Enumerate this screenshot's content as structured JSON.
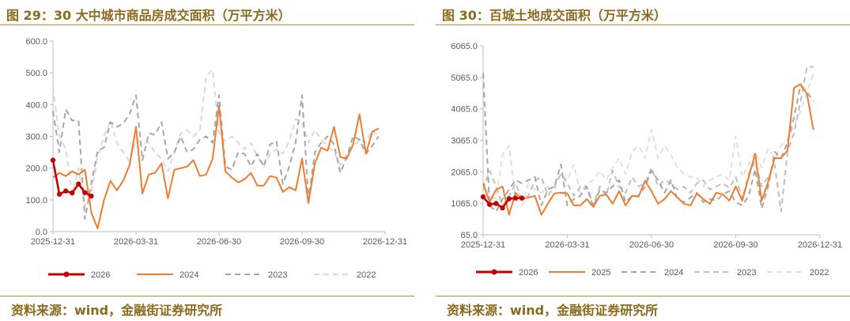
{
  "chart_data": [
    {
      "type": "line",
      "title": "图 29：30 大中城市商品房成交面积（万平方米）",
      "source": "资料来源：wind，金融街证券研究所",
      "x_tick_labels": [
        "2025-12-31",
        "2026-03-31",
        "2026-06-30",
        "2026-09-30",
        "2026-12-31"
      ],
      "y_tick_labels": [
        "0.0",
        "100.0",
        "200.0",
        "300.0",
        "400.0",
        "500.0",
        "600.0"
      ],
      "ylim": [
        0,
        600
      ],
      "x_range": [
        0,
        52
      ],
      "legend_position": "bottom",
      "series": [
        {
          "name": "2026",
          "color": "#c00000",
          "dashed": false,
          "markers": true,
          "x": [
            0,
            1,
            2,
            3,
            4,
            5,
            6,
            7
          ],
          "values": [
            225,
            118,
            128,
            122,
            150,
            123,
            112,
            null
          ]
        },
        {
          "name": "2024",
          "color": "#ed7d31",
          "dashed": false,
          "markers": false,
          "x": [
            0,
            1,
            2,
            3,
            4,
            5,
            6,
            7,
            8,
            9,
            10,
            11,
            12,
            13,
            14,
            15,
            16,
            17,
            18,
            19,
            20,
            21,
            22,
            23,
            24,
            25,
            26,
            27,
            28,
            29,
            30,
            31,
            32,
            33,
            34,
            35,
            36,
            37,
            38,
            39,
            40,
            41,
            42,
            43,
            44,
            45,
            46,
            47,
            48,
            49,
            50,
            51
          ],
          "values": [
            170,
            185,
            175,
            190,
            180,
            195,
            60,
            10,
            100,
            160,
            130,
            160,
            210,
            330,
            120,
            180,
            185,
            215,
            105,
            195,
            200,
            205,
            225,
            175,
            180,
            230,
            395,
            190,
            170,
            155,
            165,
            185,
            145,
            145,
            175,
            170,
            125,
            140,
            130,
            230,
            90,
            215,
            265,
            255,
            330,
            235,
            230,
            275,
            370,
            245,
            315,
            325
          ]
        },
        {
          "name": "2023",
          "color": "#a6a6a6",
          "dashed": true,
          "markers": false,
          "x": [
            0,
            1,
            2,
            3,
            4,
            5,
            6,
            7,
            8,
            9,
            10,
            11,
            12,
            13,
            14,
            15,
            16,
            17,
            18,
            19,
            20,
            21,
            22,
            23,
            24,
            25,
            26,
            27,
            28,
            29,
            30,
            31,
            32,
            33,
            34,
            35,
            36,
            37,
            38,
            39,
            40,
            41,
            42,
            43,
            44,
            45,
            46,
            47,
            48,
            49,
            50,
            51
          ],
          "values": [
            380,
            250,
            385,
            350,
            350,
            40,
            150,
            255,
            265,
            345,
            330,
            340,
            370,
            430,
            225,
            310,
            305,
            345,
            230,
            250,
            300,
            250,
            260,
            290,
            300,
            280,
            430,
            205,
            195,
            250,
            245,
            205,
            245,
            205,
            275,
            285,
            150,
            205,
            280,
            430,
            100,
            250,
            280,
            300,
            275,
            185,
            235,
            300,
            290,
            245,
            270,
            300
          ]
        },
        {
          "name": "2022",
          "color": "#d9d9d9",
          "dashed": true,
          "markers": false,
          "x": [
            0,
            1,
            2,
            3,
            4,
            5,
            6,
            7,
            8,
            9,
            10,
            11,
            12,
            13,
            14,
            15,
            16,
            17,
            18,
            19,
            20,
            21,
            22,
            23,
            24,
            25,
            26,
            27,
            28,
            29,
            30,
            31,
            32,
            33,
            34,
            35,
            36,
            37,
            38,
            39,
            40,
            41,
            42,
            43,
            44,
            45,
            46,
            47,
            48,
            49,
            50,
            51
          ],
          "values": [
            455,
            300,
            260,
            120,
            200,
            80,
            125,
            235,
            300,
            350,
            280,
            250,
            220,
            290,
            280,
            280,
            250,
            230,
            190,
            250,
            310,
            320,
            300,
            320,
            490,
            510,
            310,
            285,
            300,
            280,
            260,
            280,
            235,
            205,
            245,
            260,
            245,
            285,
            355,
            345,
            280,
            320,
            290,
            270,
            250,
            210,
            245,
            265,
            290,
            280,
            320,
            295
          ]
        }
      ]
    },
    {
      "type": "line",
      "title": "图 30：百城土地成交面积（万平方米）",
      "source": "资料来源：wind，金融街证券研究所",
      "x_tick_labels": [
        "2025-12-31",
        "2026-03-31",
        "2026-06-30",
        "2026-09-30",
        "2026-12-31"
      ],
      "y_tick_labels": [
        "65.0",
        "1065.0",
        "2065.0",
        "3065.0",
        "4065.0",
        "5065.0",
        "6065.0"
      ],
      "ylim": [
        65,
        6065
      ],
      "x_range": [
        0,
        52
      ],
      "legend_position": "bottom",
      "series": [
        {
          "name": "2026",
          "color": "#c00000",
          "dashed": false,
          "markers": true,
          "x": [
            0,
            1,
            2,
            3,
            4,
            5,
            6,
            7
          ],
          "values": [
            1270,
            1030,
            1060,
            920,
            1210,
            1230,
            1230,
            null
          ]
        },
        {
          "name": "2025",
          "color": "#ed7d31",
          "dashed": false,
          "markers": false,
          "x": [
            0,
            1,
            2,
            3,
            4,
            5,
            6,
            7,
            8,
            9,
            10,
            11,
            12,
            13,
            14,
            15,
            16,
            17,
            18,
            19,
            20,
            21,
            22,
            23,
            24,
            25,
            26,
            27,
            28,
            29,
            30,
            31,
            32,
            33,
            34,
            35,
            36,
            37,
            38,
            39,
            40,
            41,
            42,
            43,
            44,
            45,
            46,
            47,
            48,
            49,
            50,
            51
          ],
          "values": [
            1700,
            1100,
            1500,
            1600,
            700,
            1400,
            1200,
            1250,
            1300,
            700,
            1050,
            1380,
            1400,
            1380,
            1000,
            1000,
            1200,
            950,
            1300,
            1350,
            1050,
            1450,
            1000,
            1300,
            1280,
            1780,
            1450,
            1050,
            1200,
            1450,
            1250,
            1050,
            1000,
            1380,
            1200,
            1050,
            1400,
            1350,
            1150,
            1600,
            1150,
            1900,
            2640,
            1150,
            1750,
            2500,
            2500,
            2750,
            4730,
            4850,
            4530,
            3400
          ]
        },
        {
          "name": "2024",
          "color": "#a6a6a6",
          "dashed": true,
          "markers": false,
          "x": [
            0,
            1,
            2,
            3,
            4,
            5,
            6,
            7,
            8,
            9,
            10,
            11,
            12,
            13,
            14,
            15,
            16,
            17,
            18,
            19,
            20,
            21,
            22,
            23,
            24,
            25,
            26,
            27,
            28,
            29,
            30,
            31,
            32,
            33,
            34,
            35,
            36,
            37,
            38,
            39,
            40,
            41,
            42,
            43,
            44,
            45,
            46,
            47,
            48,
            49,
            50,
            51
          ],
          "values": [
            5200,
            1000,
            800,
            1200,
            1500,
            1800,
            1700,
            1800,
            1900,
            1000,
            1500,
            1600,
            2300,
            1000,
            1200,
            1300,
            1600,
            950,
            1500,
            1400,
            1600,
            1800,
            1100,
            1300,
            1300,
            1600,
            2100,
            1800,
            1400,
            1800,
            1200,
            1100,
            1250,
            1400,
            1100,
            1200,
            1150,
            1350,
            1450,
            1100,
            1000,
            1300,
            2150,
            900,
            1600,
            2700,
            2500,
            3000,
            3800,
            4800,
            4600,
            4300
          ]
        },
        {
          "name": "2023",
          "color": "#bfbfbf",
          "dashed": true,
          "markers": false,
          "x": [
            0,
            1,
            2,
            3,
            4,
            5,
            6,
            7,
            8,
            9,
            10,
            11,
            12,
            13,
            14,
            15,
            16,
            17,
            18,
            19,
            20,
            21,
            22,
            23,
            24,
            25,
            26,
            27,
            28,
            29,
            30,
            31,
            32,
            33,
            34,
            35,
            36,
            37,
            38,
            39,
            40,
            41,
            42,
            43,
            44,
            45,
            46,
            47,
            48,
            49,
            50,
            51
          ],
          "values": [
            1500,
            2100,
            1600,
            1000,
            1300,
            1700,
            1200,
            1300,
            1800,
            1900,
            1300,
            1600,
            2000,
            1700,
            1300,
            1600,
            1600,
            1000,
            1600,
            1300,
            2100,
            1600,
            1400,
            1900,
            1600,
            1700,
            2200,
            1600,
            1800,
            1700,
            1500,
            1600,
            1400,
            1700,
            1800,
            1500,
            1600,
            1700,
            1550,
            1900,
            1200,
            2000,
            2400,
            1600,
            1900,
            2300,
            800,
            2700,
            3300,
            4300,
            5400,
            5400
          ]
        },
        {
          "name": "2022",
          "color": "#e0e0e0",
          "dashed": true,
          "markers": false,
          "x": [
            0,
            1,
            2,
            3,
            4,
            5,
            6,
            7,
            8,
            9,
            10,
            11,
            12,
            13,
            14,
            15,
            16,
            17,
            18,
            19,
            20,
            21,
            22,
            23,
            24,
            25,
            26,
            27,
            28,
            29,
            30,
            31,
            32,
            33,
            34,
            35,
            36,
            37,
            38,
            39,
            40,
            41,
            42,
            43,
            44,
            45,
            46,
            47,
            48,
            49,
            50,
            51
          ],
          "values": [
            1800,
            1300,
            1200,
            2600,
            2900,
            1200,
            1000,
            1700,
            1500,
            1400,
            1600,
            1500,
            2000,
            1800,
            2300,
            1400,
            1700,
            1800,
            2100,
            1800,
            2200,
            2500,
            2000,
            2700,
            2900,
            2500,
            3400,
            2500,
            2900,
            2600,
            2200,
            2000,
            1900,
            1900,
            1600,
            1800,
            1900,
            2000,
            1800,
            3200,
            1900,
            2300,
            2700,
            2200,
            2800,
            2500,
            2900,
            3100,
            3500,
            4000,
            4600,
            5200
          ]
        }
      ]
    }
  ]
}
